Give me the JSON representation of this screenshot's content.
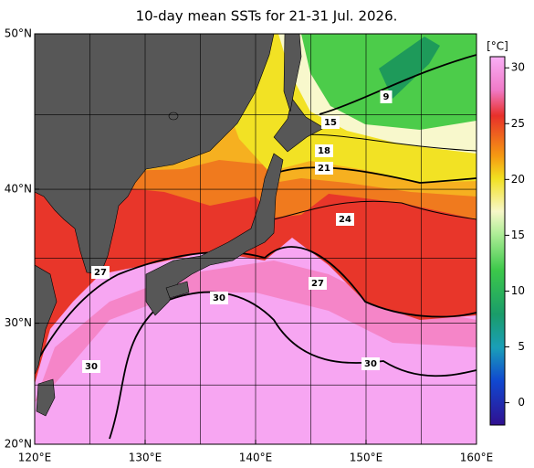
{
  "map": {
    "title": "10-day mean SSTs for 21-31 Jul. 2026.",
    "lon_ticks": [
      {
        "value": 120,
        "label": "120°E"
      },
      {
        "value": 130,
        "label": "130°E"
      },
      {
        "value": 140,
        "label": "140°E"
      },
      {
        "value": 150,
        "label": "150°E"
      },
      {
        "value": 160,
        "label": "160°E"
      }
    ],
    "lat_ticks": [
      {
        "value": 20,
        "label": "20°N"
      },
      {
        "value": 30,
        "label": "30°N"
      },
      {
        "value": 40,
        "label": "40°N"
      },
      {
        "value": 50,
        "label": "50°N"
      }
    ],
    "grid_step": 5,
    "colorbar": {
      "unit": "[°C]",
      "range": [
        -2,
        31
      ],
      "ticks": [
        0,
        5,
        10,
        15,
        20,
        25,
        30
      ]
    },
    "contour_labels": [
      "9",
      "15",
      "18",
      "21",
      "24",
      "27",
      "27",
      "30",
      "30",
      "30"
    ]
  }
}
